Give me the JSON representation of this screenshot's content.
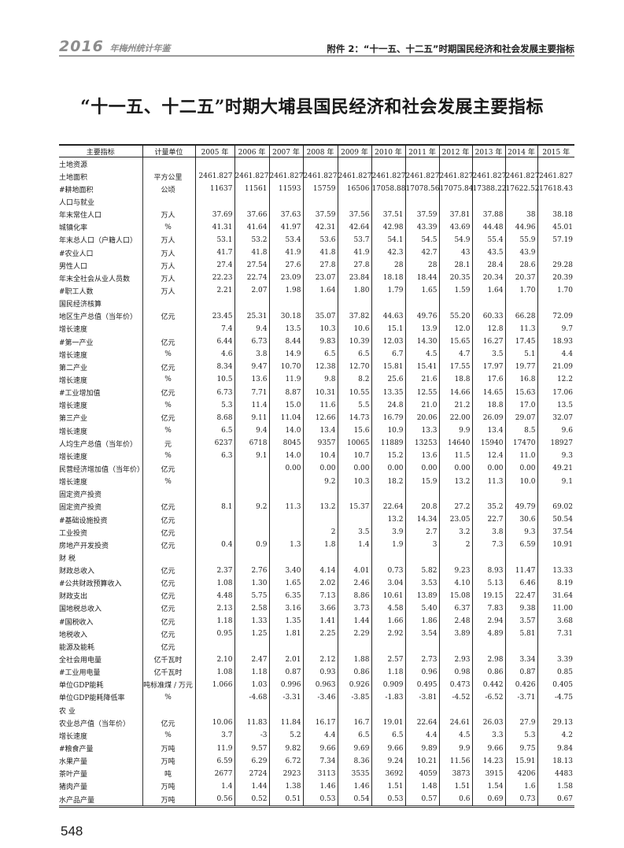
{
  "running_header": {
    "logo": "2016",
    "logo_suffix": "年梅州统计年鉴",
    "section": "附件 2：“十一五、十二五”时期国民经济和社会发展主要指标"
  },
  "title": "“十一五、十二五”时期大埔县国民经济和社会发展主要指标",
  "table": {
    "headers": [
      "主要指标",
      "计量单位",
      "2005 年",
      "2006 年",
      "2007 年",
      "2008 年",
      "2009 年",
      "2010 年",
      "2011 年",
      "2012 年",
      "2013 年",
      "2014 年",
      "2015 年"
    ],
    "rows": [
      {
        "name": "土地资源",
        "level": 0,
        "unit": "",
        "values": [
          "",
          "",
          "",
          "",
          "",
          "",
          "",
          "",
          "",
          "",
          ""
        ]
      },
      {
        "name": "土地面积",
        "level": 1,
        "unit": "平方公里",
        "values": [
          "2461.827",
          "2461.827",
          "2461.827",
          "2461.827",
          "2461.827",
          "2461.827",
          "2461.827",
          "2461.827",
          "2461.827",
          "2461.827",
          "2461.827"
        ]
      },
      {
        "name": "#耕地面积",
        "level": 2,
        "unit": "公顷",
        "values": [
          "11637",
          "11561",
          "11593",
          "15759",
          "16506",
          "17058.88",
          "17078.56",
          "17075.84",
          "17388.22",
          "17622.52",
          "17618.43"
        ]
      },
      {
        "name": "人口与就业",
        "level": 0,
        "unit": "",
        "values": [
          "",
          "",
          "",
          "",
          "",
          "",
          "",
          "",
          "",
          "",
          ""
        ]
      },
      {
        "name": "年末常住人口",
        "level": 1,
        "unit": "万人",
        "values": [
          "37.69",
          "37.66",
          "37.63",
          "37.59",
          "37.56",
          "37.51",
          "37.59",
          "37.81",
          "37.88",
          "38",
          "38.18"
        ]
      },
      {
        "name": "城镇化率",
        "level": 2,
        "unit": "%",
        "values": [
          "41.31",
          "41.64",
          "41.97",
          "42.31",
          "42.64",
          "42.98",
          "43.39",
          "43.69",
          "44.48",
          "44.96",
          "45.01"
        ]
      },
      {
        "name": "年末总人口（户籍人口）",
        "level": 1,
        "unit": "万人",
        "values": [
          "53.1",
          "53.2",
          "53.4",
          "53.6",
          "53.7",
          "54.1",
          "54.5",
          "54.9",
          "55.4",
          "55.9",
          "57.19"
        ]
      },
      {
        "name": "#农业人口",
        "level": 2,
        "unit": "万人",
        "values": [
          "41.7",
          "41.8",
          "41.9",
          "41.8",
          "41.9",
          "42.3",
          "42.7",
          "43",
          "43.5",
          "43.9",
          ""
        ]
      },
      {
        "name": "男性人口",
        "level": 2,
        "unit": "万人",
        "values": [
          "27.4",
          "27.54",
          "27.6",
          "27.8",
          "27.8",
          "28",
          "28",
          "28.1",
          "28.4",
          "28.6",
          "29.28"
        ]
      },
      {
        "name": "年末全社会从业人员数",
        "level": 1,
        "unit": "万人",
        "values": [
          "22.23",
          "22.74",
          "23.09",
          "23.07",
          "23.84",
          "18.18",
          "18.44",
          "20.35",
          "20.34",
          "20.37",
          "20.39"
        ]
      },
      {
        "name": "#职工人数",
        "level": 2,
        "unit": "万人",
        "values": [
          "2.21",
          "2.07",
          "1.98",
          "1.64",
          "1.80",
          "1.79",
          "1.65",
          "1.59",
          "1.64",
          "1.70",
          "1.70"
        ]
      },
      {
        "name": "国民经济核算",
        "level": 0,
        "unit": "",
        "values": [
          "",
          "",
          "",
          "",
          "",
          "",
          "",
          "",
          "",
          "",
          ""
        ]
      },
      {
        "name": "地区生产总值（当年价）",
        "level": 1,
        "unit": "亿元",
        "values": [
          "23.45",
          "25.31",
          "30.18",
          "35.07",
          "37.82",
          "44.63",
          "49.76",
          "55.20",
          "60.33",
          "66.28",
          "72.09"
        ]
      },
      {
        "name": "增长速度",
        "level": 3,
        "unit": "",
        "values": [
          "7.4",
          "9.4",
          "13.5",
          "10.3",
          "10.6",
          "15.1",
          "13.9",
          "12.0",
          "12.8",
          "11.3",
          "9.7"
        ]
      },
      {
        "name": "#第一产业",
        "level": 2,
        "unit": "亿元",
        "values": [
          "6.44",
          "6.73",
          "8.44",
          "9.83",
          "10.39",
          "12.03",
          "14.30",
          "15.65",
          "16.27",
          "17.45",
          "18.93"
        ]
      },
      {
        "name": "增长速度",
        "level": 3,
        "unit": "%",
        "values": [
          "4.6",
          "3.8",
          "14.9",
          "6.5",
          "6.5",
          "6.7",
          "4.5",
          "4.7",
          "3.5",
          "5.1",
          "4.4"
        ]
      },
      {
        "name": "第二产业",
        "level": 2,
        "unit": "亿元",
        "values": [
          "8.34",
          "9.47",
          "10.70",
          "12.38",
          "12.70",
          "15.81",
          "15.41",
          "17.55",
          "17.97",
          "19.77",
          "21.09"
        ]
      },
      {
        "name": "增长速度",
        "level": 3,
        "unit": "%",
        "values": [
          "10.5",
          "13.6",
          "11.9",
          "9.8",
          "8.2",
          "25.6",
          "21.6",
          "18.8",
          "17.6",
          "16.8",
          "12.2"
        ]
      },
      {
        "name": "#工业增加值",
        "level": 2,
        "unit": "亿元",
        "values": [
          "6.73",
          "7.71",
          "8.87",
          "10.31",
          "10.55",
          "13.35",
          "12.55",
          "14.66",
          "14.65",
          "15.63",
          "17.06"
        ]
      },
      {
        "name": "增长速度",
        "level": 3,
        "unit": "%",
        "values": [
          "5.3",
          "11.4",
          "15.0",
          "11.6",
          "5.5",
          "24.8",
          "21.0",
          "21.2",
          "18.8",
          "17.0",
          "13.5"
        ]
      },
      {
        "name": "第三产业",
        "level": 2,
        "unit": "亿元",
        "values": [
          "8.68",
          "9.11",
          "11.04",
          "12.66",
          "14.73",
          "16.79",
          "20.06",
          "22.00",
          "26.09",
          "29.07",
          "32.07"
        ]
      },
      {
        "name": "增长速度",
        "level": 3,
        "unit": "%",
        "values": [
          "6.5",
          "9.4",
          "14.0",
          "13.4",
          "15.6",
          "10.9",
          "13.3",
          "9.9",
          "13.4",
          "8.5",
          "9.6"
        ]
      },
      {
        "name": "人均生产总值（当年价）",
        "level": 0,
        "unit": "元",
        "values": [
          "6237",
          "6718",
          "8045",
          "9357",
          "10065",
          "11889",
          "13253",
          "14640",
          "15940",
          "17470",
          "18927"
        ]
      },
      {
        "name": "增长速度",
        "level": 3,
        "unit": "%",
        "values": [
          "6.3",
          "9.1",
          "14.0",
          "10.4",
          "10.7",
          "15.2",
          "13.6",
          "11.5",
          "12.4",
          "11.0",
          "9.3"
        ]
      },
      {
        "name": "民营经济增加值（当年价）",
        "level": 0,
        "unit": "亿元",
        "values": [
          "",
          "",
          "0.00",
          "0.00",
          "0.00",
          "0.00",
          "0.00",
          "0.00",
          "0.00",
          "0.00",
          "49.21"
        ]
      },
      {
        "name": "增长速度",
        "level": 3,
        "unit": "%",
        "values": [
          "",
          "",
          "",
          "9.2",
          "10.3",
          "18.2",
          "15.9",
          "13.2",
          "11.3",
          "10.0",
          "9.1"
        ]
      },
      {
        "name": "固定资产投资",
        "level": 0,
        "unit": "",
        "values": [
          "",
          "",
          "",
          "",
          "",
          "",
          "",
          "",
          "",
          "",
          ""
        ]
      },
      {
        "name": "固定资产投资",
        "level": 1,
        "unit": "亿元",
        "values": [
          "8.1",
          "9.2",
          "11.3",
          "13.2",
          "15.37",
          "22.64",
          "20.8",
          "27.2",
          "35.2",
          "49.79",
          "69.02"
        ]
      },
      {
        "name": "#基础设施投资",
        "level": 1,
        "unit": "亿元",
        "values": [
          "",
          "",
          "",
          "",
          "",
          "13.2",
          "14.34",
          "23.05",
          "22.7",
          "30.6",
          "50.54"
        ]
      },
      {
        "name": "工业投资",
        "level": 2,
        "unit": "亿元",
        "values": [
          "",
          "",
          "",
          "2",
          "3.5",
          "3.9",
          "2.7",
          "3.2",
          "3.8",
          "9.3",
          "37.54"
        ]
      },
      {
        "name": "房地产开发投资",
        "level": 2,
        "unit": "亿元",
        "values": [
          "0.4",
          "0.9",
          "1.3",
          "1.8",
          "1.4",
          "1.9",
          "3",
          "2",
          "7.3",
          "6.59",
          "10.91"
        ]
      },
      {
        "name": "财 税",
        "level": 0,
        "unit": "",
        "values": [
          "",
          "",
          "",
          "",
          "",
          "",
          "",
          "",
          "",
          "",
          ""
        ]
      },
      {
        "name": "财政总收入",
        "level": 1,
        "unit": "亿元",
        "values": [
          "2.37",
          "2.76",
          "3.40",
          "4.14",
          "4.01",
          "0.73",
          "5.82",
          "9.23",
          "8.93",
          "11.47",
          "13.33"
        ]
      },
      {
        "name": "#公共财政预算收入",
        "level": 1,
        "unit": "亿元",
        "values": [
          "1.08",
          "1.30",
          "1.65",
          "2.02",
          "2.46",
          "3.04",
          "3.53",
          "4.10",
          "5.13",
          "6.46",
          "8.19"
        ]
      },
      {
        "name": "财政支出",
        "level": 1,
        "unit": "亿元",
        "values": [
          "4.48",
          "5.75",
          "6.35",
          "7.13",
          "8.86",
          "10.61",
          "13.89",
          "15.08",
          "19.15",
          "22.47",
          "31.64"
        ]
      },
      {
        "name": "国地税总收入",
        "level": 1,
        "unit": "亿元",
        "values": [
          "2.13",
          "2.58",
          "3.16",
          "3.66",
          "3.73",
          "4.58",
          "5.40",
          "6.37",
          "7.83",
          "9.38",
          "11.00"
        ]
      },
      {
        "name": "#国税收入",
        "level": 1,
        "unit": "亿元",
        "values": [
          "1.18",
          "1.33",
          "1.35",
          "1.41",
          "1.44",
          "1.66",
          "1.86",
          "2.48",
          "2.94",
          "3.57",
          "3.68"
        ]
      },
      {
        "name": "地税收入",
        "level": 2,
        "unit": "亿元",
        "values": [
          "0.95",
          "1.25",
          "1.81",
          "2.25",
          "2.29",
          "2.92",
          "3.54",
          "3.89",
          "4.89",
          "5.81",
          "7.31"
        ]
      },
      {
        "name": "能源及能耗",
        "level": 0,
        "unit": "亿元",
        "values": [
          "",
          "",
          "",
          "",
          "",
          "",
          "",
          "",
          "",
          "",
          ""
        ]
      },
      {
        "name": "全社会用电量",
        "level": 1,
        "unit": "亿千瓦时",
        "values": [
          "2.10",
          "2.47",
          "2.01",
          "2.12",
          "1.88",
          "2.57",
          "2.73",
          "2.93",
          "2.98",
          "3.34",
          "3.39"
        ]
      },
      {
        "name": "#工业用电量",
        "level": 2,
        "unit": "亿千瓦时",
        "values": [
          "1.08",
          "1.18",
          "0.87",
          "0.93",
          "0.86",
          "1.18",
          "0.96",
          "0.98",
          "0.86",
          "0.87",
          "0.85"
        ]
      },
      {
        "name": "单位GDP能耗",
        "level": 1,
        "unit": "吨标准煤 / 万元",
        "values": [
          "1.066",
          "1.03",
          "0.996",
          "0.963",
          "0.926",
          "0.909",
          "0.495",
          "0.473",
          "0.442",
          "0.426",
          "0.405"
        ]
      },
      {
        "name": "单位GDP能耗降低率",
        "level": 1,
        "unit": "%",
        "values": [
          "",
          "-4.68",
          "-3.31",
          "-3.46",
          "-3.85",
          "-1.83",
          "-3.81",
          "-4.52",
          "-6.52",
          "-3.71",
          "-4.75"
        ]
      },
      {
        "name": "农 业",
        "level": 0,
        "unit": "",
        "values": [
          "",
          "",
          "",
          "",
          "",
          "",
          "",
          "",
          "",
          "",
          ""
        ]
      },
      {
        "name": "农业总产值（当年价）",
        "level": 1,
        "unit": "亿元",
        "values": [
          "10.06",
          "11.83",
          "11.84",
          "16.17",
          "16.7",
          "19.01",
          "22.64",
          "24.61",
          "26.03",
          "27.9",
          "29.13"
        ]
      },
      {
        "name": "增长速度",
        "level": 3,
        "unit": "%",
        "values": [
          "3.7",
          "-3",
          "5.2",
          "4.4",
          "6.5",
          "6.5",
          "4.4",
          "4.5",
          "3.3",
          "5.3",
          "4.2"
        ]
      },
      {
        "name": "#粮食产量",
        "level": 1,
        "unit": "万吨",
        "values": [
          "11.9",
          "9.57",
          "9.82",
          "9.66",
          "9.69",
          "9.66",
          "9.89",
          "9.9",
          "9.66",
          "9.75",
          "9.84"
        ]
      },
      {
        "name": "水果产量",
        "level": 1,
        "unit": "万吨",
        "values": [
          "6.59",
          "6.29",
          "6.72",
          "7.34",
          "8.36",
          "9.24",
          "10.21",
          "11.56",
          "14.23",
          "15.91",
          "18.13"
        ]
      },
      {
        "name": "茶叶产量",
        "level": 1,
        "unit": "吨",
        "values": [
          "2677",
          "2724",
          "2923",
          "3113",
          "3535",
          "3692",
          "4059",
          "3873",
          "3915",
          "4206",
          "4483"
        ]
      },
      {
        "name": "猪肉产量",
        "level": 1,
        "unit": "万吨",
        "values": [
          "1.4",
          "1.44",
          "1.38",
          "1.46",
          "1.46",
          "1.51",
          "1.48",
          "1.51",
          "1.54",
          "1.6",
          "1.58"
        ]
      },
      {
        "name": "水产品产量",
        "level": 2,
        "unit": "万吨",
        "values": [
          "0.56",
          "0.52",
          "0.51",
          "0.53",
          "0.54",
          "0.53",
          "0.57",
          "0.6",
          "0.69",
          "0.73",
          "0.67"
        ]
      }
    ]
  },
  "page_number": "548"
}
